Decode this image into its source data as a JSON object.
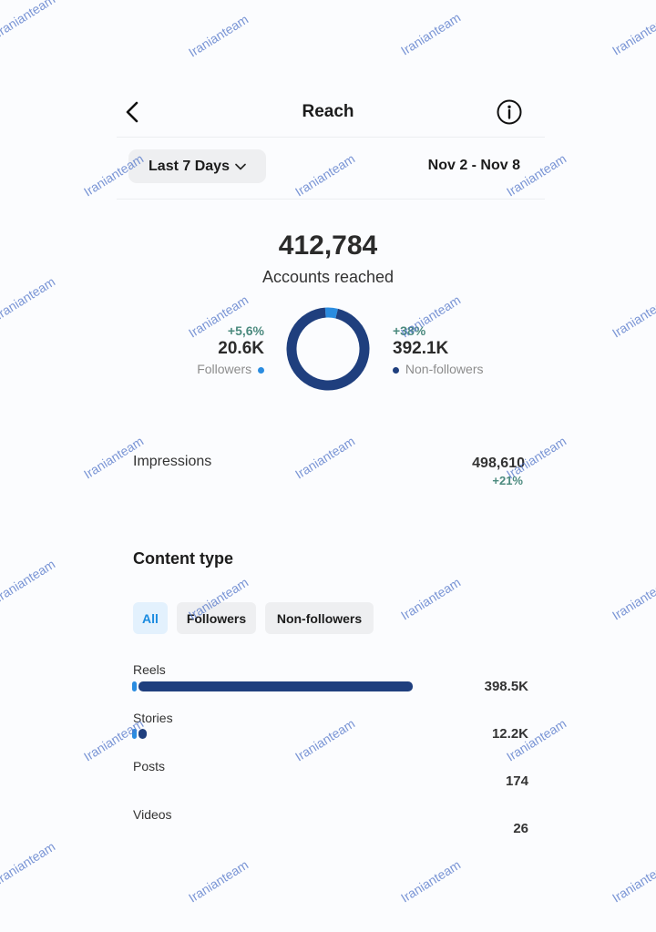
{
  "header": {
    "title": "Reach",
    "back_icon": "chevron-left-icon",
    "info_icon": "info-icon"
  },
  "filters": {
    "period": "Last 7 Days",
    "date_range": "Nov 2 - Nov 8"
  },
  "summary": {
    "accounts_reached": "412,784",
    "accounts_reached_label": "Accounts reached",
    "followers": {
      "delta": "+5,6%",
      "count": "20.6K",
      "label": "Followers"
    },
    "non_followers": {
      "delta": "+38%",
      "count": "392.1K",
      "label": "Non-followers"
    }
  },
  "impressions": {
    "label": "Impressions",
    "value": "498,610",
    "delta": "+21%"
  },
  "content_type": {
    "title": "Content type",
    "chips": [
      "All",
      "Followers",
      "Non-followers"
    ],
    "active_chip": "All",
    "rows": [
      {
        "label": "Reels",
        "value": "398.5K"
      },
      {
        "label": "Stories",
        "value": "12.2K"
      },
      {
        "label": "Posts",
        "value": "174"
      },
      {
        "label": "Videos",
        "value": "26"
      }
    ]
  },
  "colors": {
    "followers": "#2a8ce0",
    "non_followers": "#1f3f7e",
    "delta": "#4b8a7e",
    "active_chip_text": "#1a8be0"
  },
  "watermark": "Iranianteam",
  "chart_data": [
    {
      "type": "pie",
      "categories": [
        "Followers",
        "Non-followers"
      ],
      "values": [
        20.6,
        392.1
      ]
    },
    {
      "type": "bar",
      "categories": [
        "Reels",
        "Stories",
        "Posts",
        "Videos"
      ],
      "series": [
        {
          "name": "Followers",
          "values": [
            6.3,
            1.1,
            0,
            0
          ]
        },
        {
          "name": "Non-followers",
          "values": [
            392.2,
            11.1,
            0.174,
            0.026
          ]
        }
      ]
    }
  ]
}
